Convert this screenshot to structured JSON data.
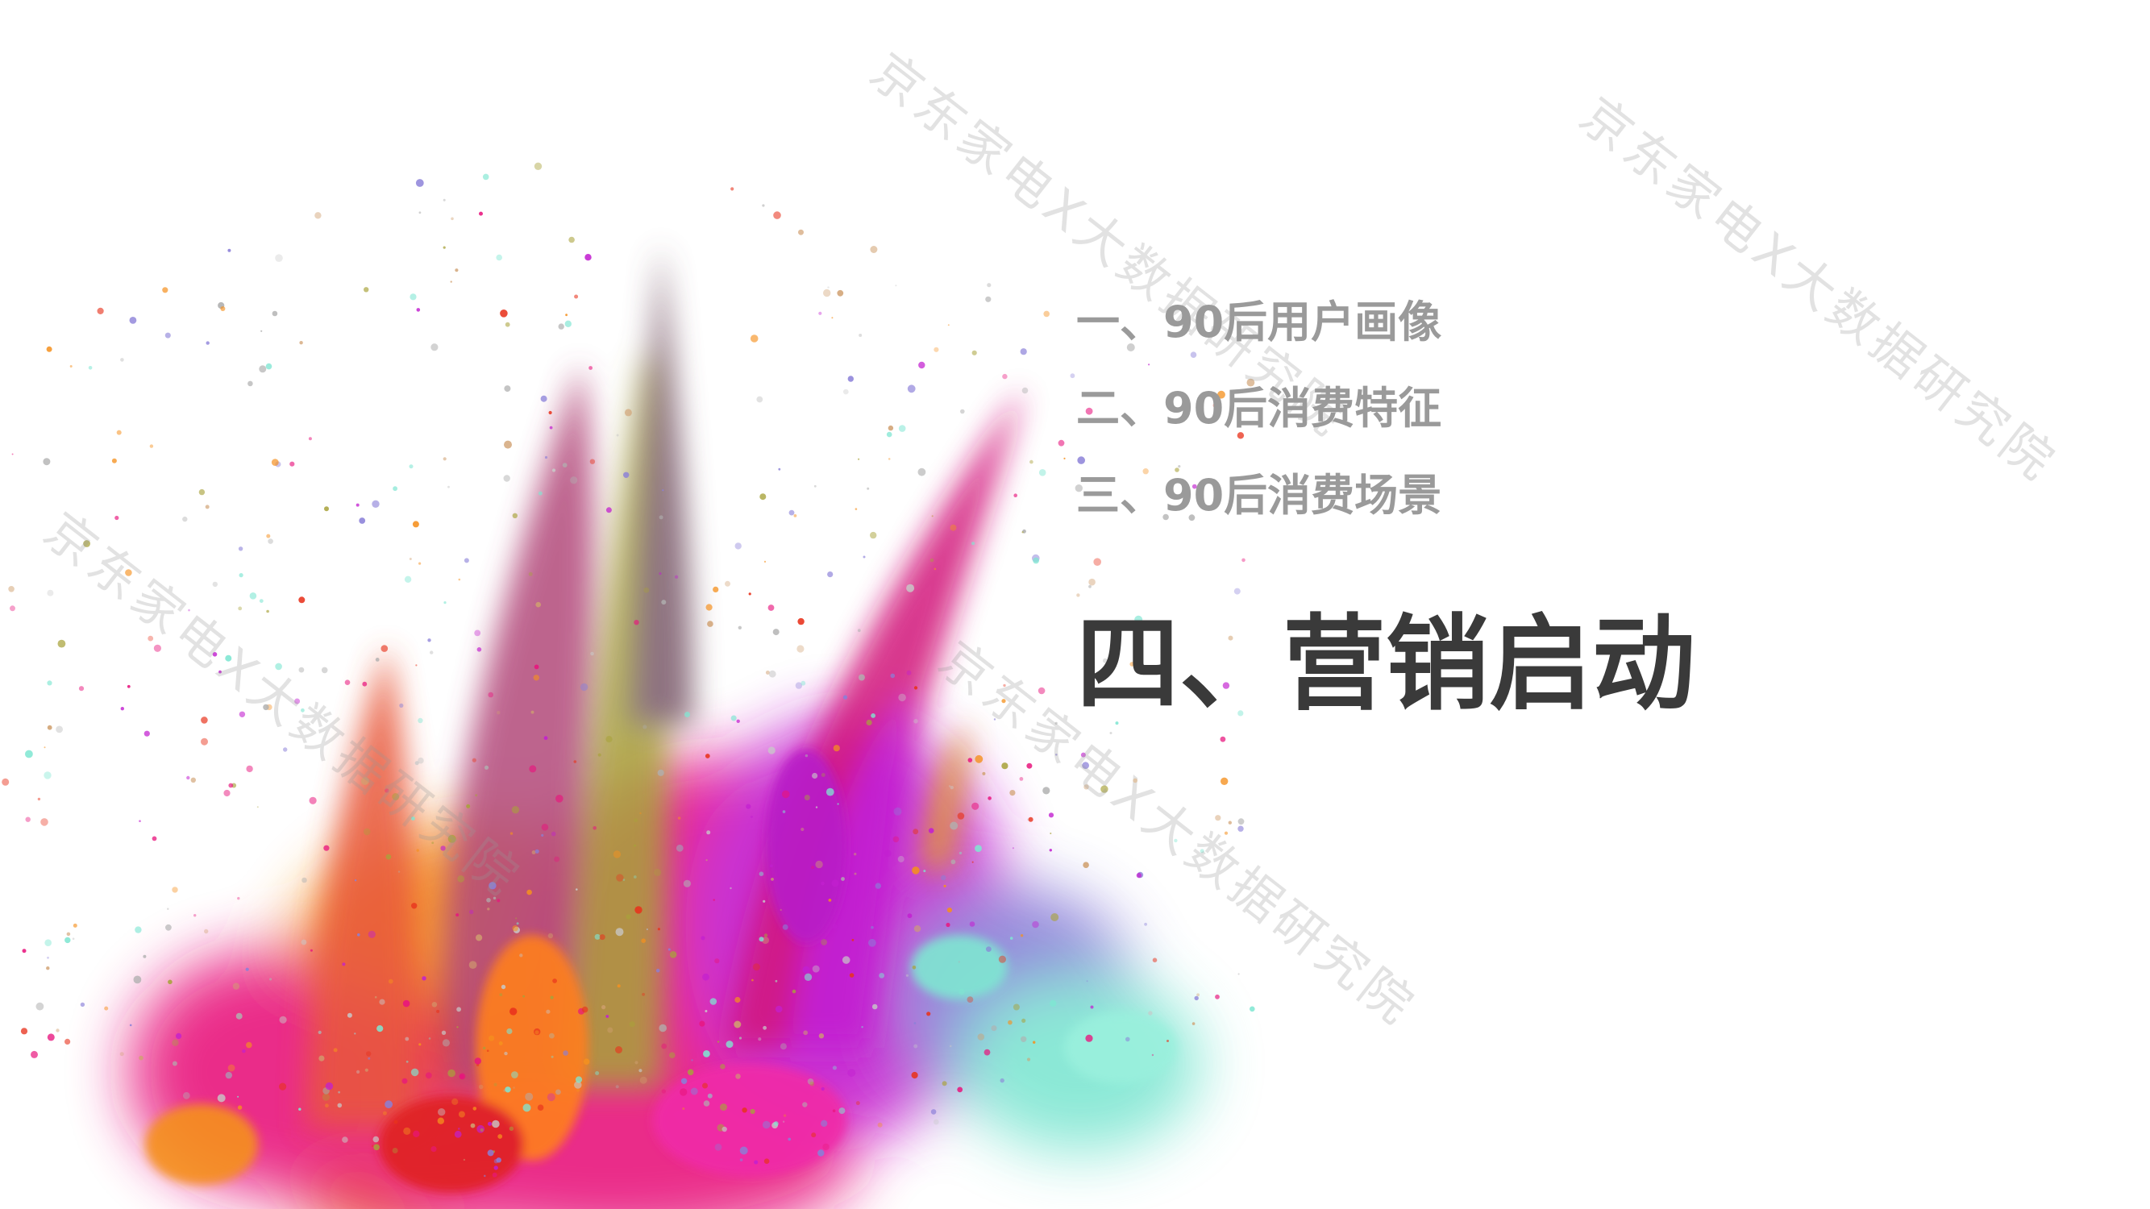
{
  "agenda": {
    "item_1": "一、90后用户画像",
    "item_2": "二、90后消费特征",
    "item_3": "三、90后消费场景",
    "item_4": "四、营销启动"
  },
  "watermark": {
    "text": "京东家电X大数据研究院"
  },
  "colors": {
    "background": "#ffffff",
    "agenda_inactive": "#9a9a9a",
    "agenda_active": "#3a3a3a",
    "powder_palette": [
      "#e8157d",
      "#c21fd0",
      "#f5901e",
      "#e8321c",
      "#7fe6d2",
      "#8a7fd8",
      "#a8a23a"
    ]
  }
}
